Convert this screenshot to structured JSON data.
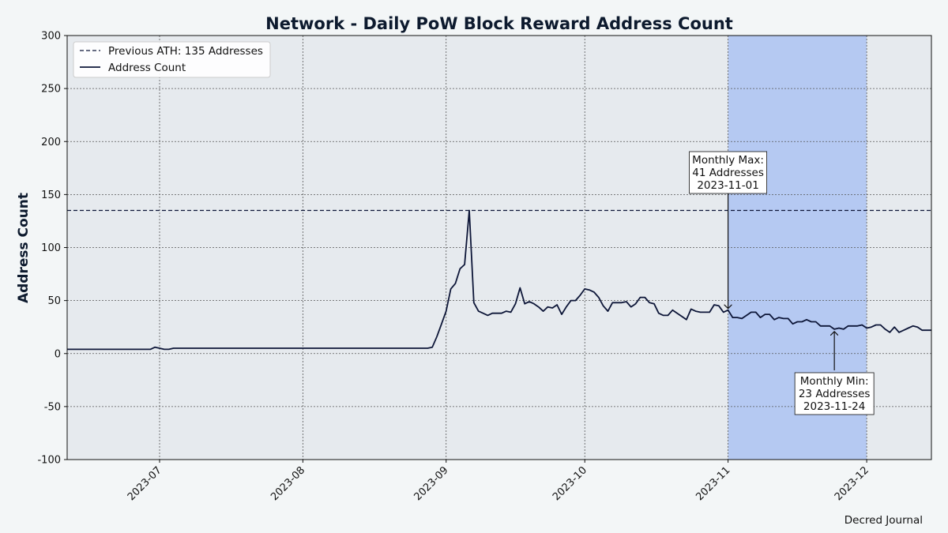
{
  "chart_data": {
    "type": "line",
    "title": "Network - Daily PoW Block Reward Address Count",
    "xlabel": "",
    "ylabel": "Address Count",
    "ylim": [
      -100,
      300
    ],
    "xlim": [
      "2023-06-11",
      "2023-12-15"
    ],
    "yticks": [
      -100,
      -50,
      0,
      50,
      100,
      150,
      200,
      250,
      300
    ],
    "xticks": [
      "2023-07",
      "2023-08",
      "2023-09",
      "2023-10",
      "2023-11",
      "2023-12"
    ],
    "grid": true,
    "legend_position": "top-left",
    "highlight_region": {
      "start": "2023-11-01",
      "end": "2023-12-01",
      "color": "#b5c9f2"
    },
    "reference_line": {
      "name": "Previous ATH: 135 Addresses",
      "value": 135,
      "style": "dashed"
    },
    "series": [
      {
        "name": "Address Count",
        "color": "#0d1638",
        "points": [
          [
            "2023-06-11",
            4
          ],
          [
            "2023-06-29",
            4
          ],
          [
            "2023-06-30",
            6
          ],
          [
            "2023-07-01",
            5
          ],
          [
            "2023-07-02",
            4
          ],
          [
            "2023-07-03",
            4
          ],
          [
            "2023-07-04",
            5
          ],
          [
            "2023-08-27",
            5
          ],
          [
            "2023-08-28",
            5
          ],
          [
            "2023-08-29",
            6
          ],
          [
            "2023-08-30",
            16
          ],
          [
            "2023-08-31",
            28
          ],
          [
            "2023-09-01",
            40
          ],
          [
            "2023-09-02",
            61
          ],
          [
            "2023-09-03",
            66
          ],
          [
            "2023-09-04",
            80
          ],
          [
            "2023-09-05",
            84
          ],
          [
            "2023-09-06",
            135
          ],
          [
            "2023-09-07",
            48
          ],
          [
            "2023-09-08",
            40
          ],
          [
            "2023-09-09",
            38
          ],
          [
            "2023-09-10",
            36
          ],
          [
            "2023-09-11",
            38
          ],
          [
            "2023-09-12",
            38
          ],
          [
            "2023-09-13",
            38
          ],
          [
            "2023-09-14",
            40
          ],
          [
            "2023-09-15",
            39
          ],
          [
            "2023-09-16",
            47
          ],
          [
            "2023-09-17",
            62
          ],
          [
            "2023-09-18",
            47
          ],
          [
            "2023-09-19",
            49
          ],
          [
            "2023-09-20",
            47
          ],
          [
            "2023-09-21",
            44
          ],
          [
            "2023-09-22",
            40
          ],
          [
            "2023-09-23",
            44
          ],
          [
            "2023-09-24",
            43
          ],
          [
            "2023-09-25",
            46
          ],
          [
            "2023-09-26",
            37
          ],
          [
            "2023-09-27",
            44
          ],
          [
            "2023-09-28",
            50
          ],
          [
            "2023-09-29",
            50
          ],
          [
            "2023-09-30",
            55
          ],
          [
            "2023-10-01",
            61
          ],
          [
            "2023-10-02",
            60
          ],
          [
            "2023-10-03",
            58
          ],
          [
            "2023-10-04",
            53
          ],
          [
            "2023-10-05",
            45
          ],
          [
            "2023-10-06",
            40
          ],
          [
            "2023-10-07",
            48
          ],
          [
            "2023-10-08",
            48
          ],
          [
            "2023-10-09",
            48
          ],
          [
            "2023-10-10",
            49
          ],
          [
            "2023-10-11",
            44
          ],
          [
            "2023-10-12",
            47
          ],
          [
            "2023-10-13",
            53
          ],
          [
            "2023-10-14",
            53
          ],
          [
            "2023-10-15",
            48
          ],
          [
            "2023-10-16",
            47
          ],
          [
            "2023-10-17",
            38
          ],
          [
            "2023-10-18",
            36
          ],
          [
            "2023-10-19",
            36
          ],
          [
            "2023-10-20",
            41
          ],
          [
            "2023-10-21",
            38
          ],
          [
            "2023-10-22",
            35
          ],
          [
            "2023-10-23",
            32
          ],
          [
            "2023-10-24",
            42
          ],
          [
            "2023-10-25",
            40
          ],
          [
            "2023-10-26",
            39
          ],
          [
            "2023-10-27",
            39
          ],
          [
            "2023-10-28",
            39
          ],
          [
            "2023-10-29",
            46
          ],
          [
            "2023-10-30",
            45
          ],
          [
            "2023-10-31",
            39
          ],
          [
            "2023-11-01",
            41
          ],
          [
            "2023-11-02",
            34
          ],
          [
            "2023-11-03",
            34
          ],
          [
            "2023-11-04",
            33
          ],
          [
            "2023-11-05",
            36
          ],
          [
            "2023-11-06",
            39
          ],
          [
            "2023-11-07",
            39
          ],
          [
            "2023-11-08",
            34
          ],
          [
            "2023-11-09",
            37
          ],
          [
            "2023-11-10",
            37
          ],
          [
            "2023-11-11",
            32
          ],
          [
            "2023-11-12",
            34
          ],
          [
            "2023-11-13",
            33
          ],
          [
            "2023-11-14",
            33
          ],
          [
            "2023-11-15",
            28
          ],
          [
            "2023-11-16",
            30
          ],
          [
            "2023-11-17",
            30
          ],
          [
            "2023-11-18",
            32
          ],
          [
            "2023-11-19",
            30
          ],
          [
            "2023-11-20",
            30
          ],
          [
            "2023-11-21",
            26
          ],
          [
            "2023-11-22",
            26
          ],
          [
            "2023-11-23",
            26
          ],
          [
            "2023-11-24",
            23
          ],
          [
            "2023-11-25",
            24
          ],
          [
            "2023-11-26",
            23
          ],
          [
            "2023-11-27",
            26
          ],
          [
            "2023-11-28",
            26
          ],
          [
            "2023-11-29",
            26
          ],
          [
            "2023-11-30",
            27
          ],
          [
            "2023-12-01",
            24
          ],
          [
            "2023-12-02",
            25
          ],
          [
            "2023-12-03",
            27
          ],
          [
            "2023-12-04",
            27
          ],
          [
            "2023-12-05",
            23
          ],
          [
            "2023-12-06",
            20
          ],
          [
            "2023-12-07",
            25
          ],
          [
            "2023-12-08",
            20
          ],
          [
            "2023-12-09",
            22
          ],
          [
            "2023-12-10",
            24
          ],
          [
            "2023-12-11",
            26
          ],
          [
            "2023-12-12",
            25
          ],
          [
            "2023-12-13",
            22
          ],
          [
            "2023-12-14",
            22
          ],
          [
            "2023-12-15",
            22
          ]
        ]
      }
    ],
    "annotations": [
      {
        "name": "monthly-max",
        "lines": [
          "Monthly Max:",
          "41 Addresses",
          "2023-11-01"
        ],
        "x": "2023-11-01",
        "y": 41
      },
      {
        "name": "monthly-min",
        "lines": [
          "Monthly Min:",
          "23 Addresses",
          "2023-11-24"
        ],
        "x": "2023-11-24",
        "y": 23
      }
    ],
    "credit": "Decred Journal"
  }
}
